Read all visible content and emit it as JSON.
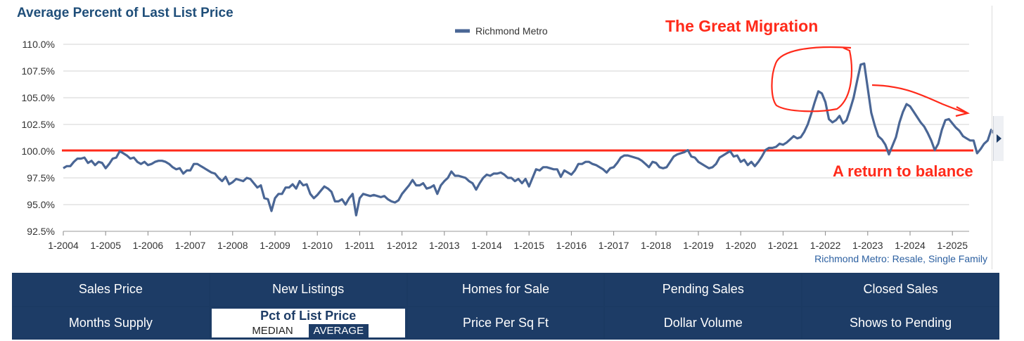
{
  "title": "Average Percent of Last List Price",
  "source_label": "Richmond Metro: Resale, Single Family",
  "chart_data": {
    "type": "line",
    "title": "Average Percent of Last List Price",
    "ylim": [
      92.5,
      110.0
    ],
    "y_ticks": [
      "110.0%",
      "107.5%",
      "105.0%",
      "102.5%",
      "100.0%",
      "97.5%",
      "95.0%",
      "92.5%"
    ],
    "y_tick_values": [
      110.0,
      107.5,
      105.0,
      102.5,
      100.0,
      97.5,
      95.0,
      92.5
    ],
    "x_ticks": [
      "1-2004",
      "1-2005",
      "1-2006",
      "1-2007",
      "1-2008",
      "1-2009",
      "1-2010",
      "1-2011",
      "1-2012",
      "1-2013",
      "1-2014",
      "1-2015",
      "1-2016",
      "1-2017",
      "1-2018",
      "1-2019",
      "1-2020",
      "1-2021",
      "1-2022",
      "1-2023",
      "1-2024",
      "1-2025"
    ],
    "x_start_year": 2004,
    "series": [
      {
        "name": "Richmond Metro",
        "color": "#4a6695",
        "start": "1-2004",
        "values": [
          98.4,
          98.6,
          98.6,
          99.0,
          99.3,
          99.3,
          99.4,
          98.9,
          99.1,
          98.7,
          99.0,
          98.9,
          98.4,
          98.8,
          99.3,
          99.4,
          100.0,
          99.8,
          99.6,
          99.3,
          99.4,
          99.0,
          98.8,
          99.0,
          98.7,
          98.8,
          99.0,
          99.1,
          99.1,
          99.0,
          98.8,
          98.5,
          98.3,
          98.4,
          97.9,
          98.2,
          98.2,
          98.8,
          98.8,
          98.6,
          98.4,
          98.2,
          98.0,
          97.9,
          97.5,
          97.2,
          97.6,
          96.9,
          97.1,
          97.4,
          97.3,
          97.2,
          97.5,
          97.4,
          97.0,
          96.6,
          96.8,
          95.6,
          95.5,
          94.4,
          95.6,
          96.0,
          96.0,
          96.6,
          96.6,
          96.9,
          96.5,
          97.2,
          96.8,
          96.9,
          96.0,
          95.6,
          95.9,
          96.3,
          96.7,
          96.5,
          96.2,
          95.3,
          95.3,
          95.5,
          95.0,
          95.6,
          96.0,
          94.0,
          95.6,
          96.0,
          95.9,
          95.8,
          95.9,
          95.8,
          95.7,
          95.8,
          95.5,
          95.3,
          95.2,
          95.4,
          96.0,
          96.4,
          96.8,
          97.3,
          96.8,
          96.8,
          97.0,
          96.5,
          96.6,
          96.8,
          96.0,
          96.8,
          97.2,
          97.5,
          98.1,
          97.7,
          97.7,
          97.6,
          97.5,
          97.2,
          97.0,
          96.4,
          97.0,
          97.5,
          97.8,
          97.7,
          97.9,
          97.9,
          98.0,
          97.8,
          97.5,
          97.5,
          97.2,
          97.4,
          97.0,
          97.4,
          96.7,
          97.5,
          98.3,
          98.2,
          98.5,
          98.5,
          98.4,
          98.3,
          98.3,
          97.6,
          98.2,
          98.0,
          97.8,
          98.2,
          98.8,
          98.8,
          99.0,
          99.0,
          98.8,
          98.7,
          98.5,
          98.3,
          98.0,
          98.4,
          98.5,
          98.9,
          99.4,
          99.6,
          99.6,
          99.5,
          99.4,
          99.3,
          99.1,
          98.8,
          98.5,
          99.0,
          98.9,
          98.5,
          98.4,
          98.5,
          99.0,
          99.5,
          99.7,
          99.8,
          99.9,
          100.1,
          99.5,
          99.4,
          99.0,
          98.8,
          98.6,
          98.4,
          98.5,
          98.8,
          99.4,
          99.6,
          99.8,
          100.0,
          99.5,
          99.6,
          99.0,
          99.2,
          98.7,
          99.0,
          98.6,
          99.0,
          99.5,
          100.1,
          100.3,
          100.3,
          100.4,
          100.7,
          100.6,
          100.8,
          101.1,
          101.4,
          101.2,
          101.3,
          101.8,
          102.5,
          103.5,
          104.6,
          105.6,
          105.4,
          104.6,
          103.0,
          102.7,
          102.9,
          103.3,
          102.6,
          102.9,
          103.9,
          105.0,
          106.6,
          108.1,
          108.2,
          105.9,
          103.6,
          102.4,
          101.4,
          101.1,
          100.6,
          99.7,
          100.5,
          101.3,
          102.7,
          103.7,
          104.4,
          104.2,
          103.7,
          103.2,
          102.7,
          102.3,
          101.7,
          101.0,
          100.1,
          100.7,
          102.0,
          102.9,
          103.0,
          102.6,
          102.2,
          101.9,
          101.4,
          101.2,
          101.0,
          101.0,
          99.8,
          100.2,
          100.7,
          101.0,
          102.0,
          101.6
        ]
      }
    ],
    "reference_line": {
      "value": 100.0,
      "color": "#ff2a1a"
    },
    "legend": {
      "entry": "Richmond Metro",
      "placement": "top-center"
    },
    "annotations": [
      {
        "text": "The Great Migration",
        "color": "#ff2a1a"
      },
      {
        "text": "A return to balance",
        "color": "#ff2a1a"
      }
    ]
  },
  "metrics": {
    "row1": [
      "Sales Price",
      "New Listings",
      "Homes for Sale",
      "Pending Sales",
      "Closed Sales"
    ],
    "row2_left": "Months Supply",
    "active": {
      "title": "Pct of List Price",
      "option_median": "MEDIAN",
      "option_average": "AVERAGE",
      "selected": "AVERAGE"
    },
    "row2_right": [
      "Price Per Sq Ft",
      "Dollar Volume",
      "Shows to Pending"
    ]
  }
}
